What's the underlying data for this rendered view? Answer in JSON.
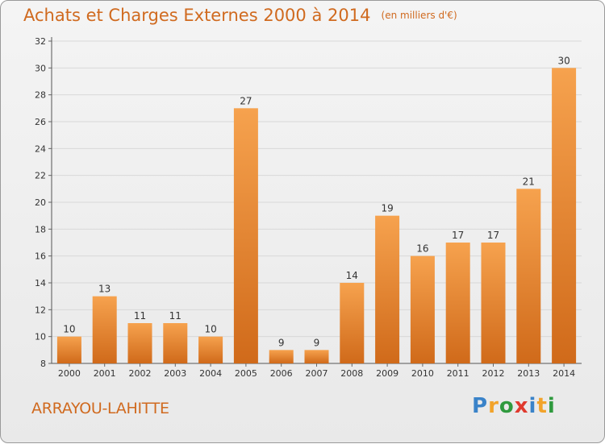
{
  "header": {
    "title": "Achats et Charges Externes 2000 à 2014",
    "unit": "(en milliers d'€)"
  },
  "commune_name": "ARRAYOU-LAHITTE",
  "logo": {
    "text": "Proxiti",
    "letters": [
      {
        "ch": "P",
        "color": "#3a83c9"
      },
      {
        "ch": "r",
        "color": "#f2a32a"
      },
      {
        "ch": "o",
        "color": "#2f9a3e"
      },
      {
        "ch": "x",
        "color": "#e03a2e"
      },
      {
        "ch": "i",
        "color": "#3a83c9"
      },
      {
        "ch": "t",
        "color": "#f2a32a"
      },
      {
        "ch": "i",
        "color": "#2f9a3e"
      }
    ]
  },
  "chart_data": {
    "type": "bar",
    "title": "Achats et Charges Externes 2000 à 2014",
    "subtitle": "(en milliers d'€)",
    "categories": [
      "2000",
      "2001",
      "2002",
      "2003",
      "2004",
      "2005",
      "2006",
      "2007",
      "2008",
      "2009",
      "2010",
      "2011",
      "2012",
      "2013",
      "2014"
    ],
    "values": [
      10,
      13,
      11,
      11,
      10,
      27,
      9,
      9,
      14,
      19,
      16,
      17,
      17,
      21,
      30
    ],
    "ylim": [
      8,
      32
    ],
    "yticks": [
      8,
      10,
      12,
      14,
      16,
      18,
      20,
      22,
      24,
      26,
      28,
      30,
      32
    ],
    "grid": true,
    "xlabel": "",
    "ylabel": "",
    "colors": {
      "bar_top": "#f6a24e",
      "bar_bottom": "#d06a1a",
      "text": "#333333",
      "grid": "#d8d8d8"
    }
  }
}
